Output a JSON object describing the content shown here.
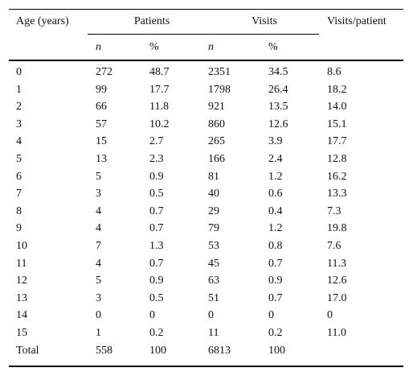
{
  "header": {
    "age": "Age (years)",
    "patients": "Patients",
    "visits": "Visits",
    "visits_per_patient": "Visits/patient",
    "sub_n1": "n",
    "sub_pct1": "%",
    "sub_n2": "n",
    "sub_pct2": "%"
  },
  "rows": [
    [
      "0",
      "272",
      "48.7",
      "2351",
      "34.5",
      "8.6"
    ],
    [
      "1",
      "99",
      "17.7",
      "1798",
      "26.4",
      "18.2"
    ],
    [
      "2",
      "66",
      "11.8",
      "921",
      "13.5",
      "14.0"
    ],
    [
      "3",
      "57",
      "10.2",
      "860",
      "12.6",
      "15.1"
    ],
    [
      "4",
      "15",
      "2.7",
      "265",
      "3.9",
      "17.7"
    ],
    [
      "5",
      "13",
      "2.3",
      "166",
      "2.4",
      "12.8"
    ],
    [
      "6",
      "5",
      "0.9",
      "81",
      "1.2",
      "16.2"
    ],
    [
      "7",
      "3",
      "0.5",
      "40",
      "0.6",
      "13.3"
    ],
    [
      "8",
      "4",
      "0.7",
      "29",
      "0.4",
      "7.3"
    ],
    [
      "9",
      "4",
      "0.7",
      "79",
      "1.2",
      "19.8"
    ],
    [
      "10",
      "7",
      "1.3",
      "53",
      "0.8",
      "7.6"
    ],
    [
      "11",
      "4",
      "0.7",
      "45",
      "0.7",
      "11.3"
    ],
    [
      "12",
      "5",
      "0.9",
      "63",
      "0.9",
      "12.6"
    ],
    [
      "13",
      "3",
      "0.5",
      "51",
      "0.7",
      "17.0"
    ],
    [
      "14",
      "0",
      "0",
      "0",
      "0",
      "0"
    ],
    [
      "15",
      "1",
      "0.2",
      "11",
      "0.2",
      "11.0"
    ],
    [
      "Total",
      "558",
      "100",
      "6813",
      "100",
      ""
    ]
  ]
}
